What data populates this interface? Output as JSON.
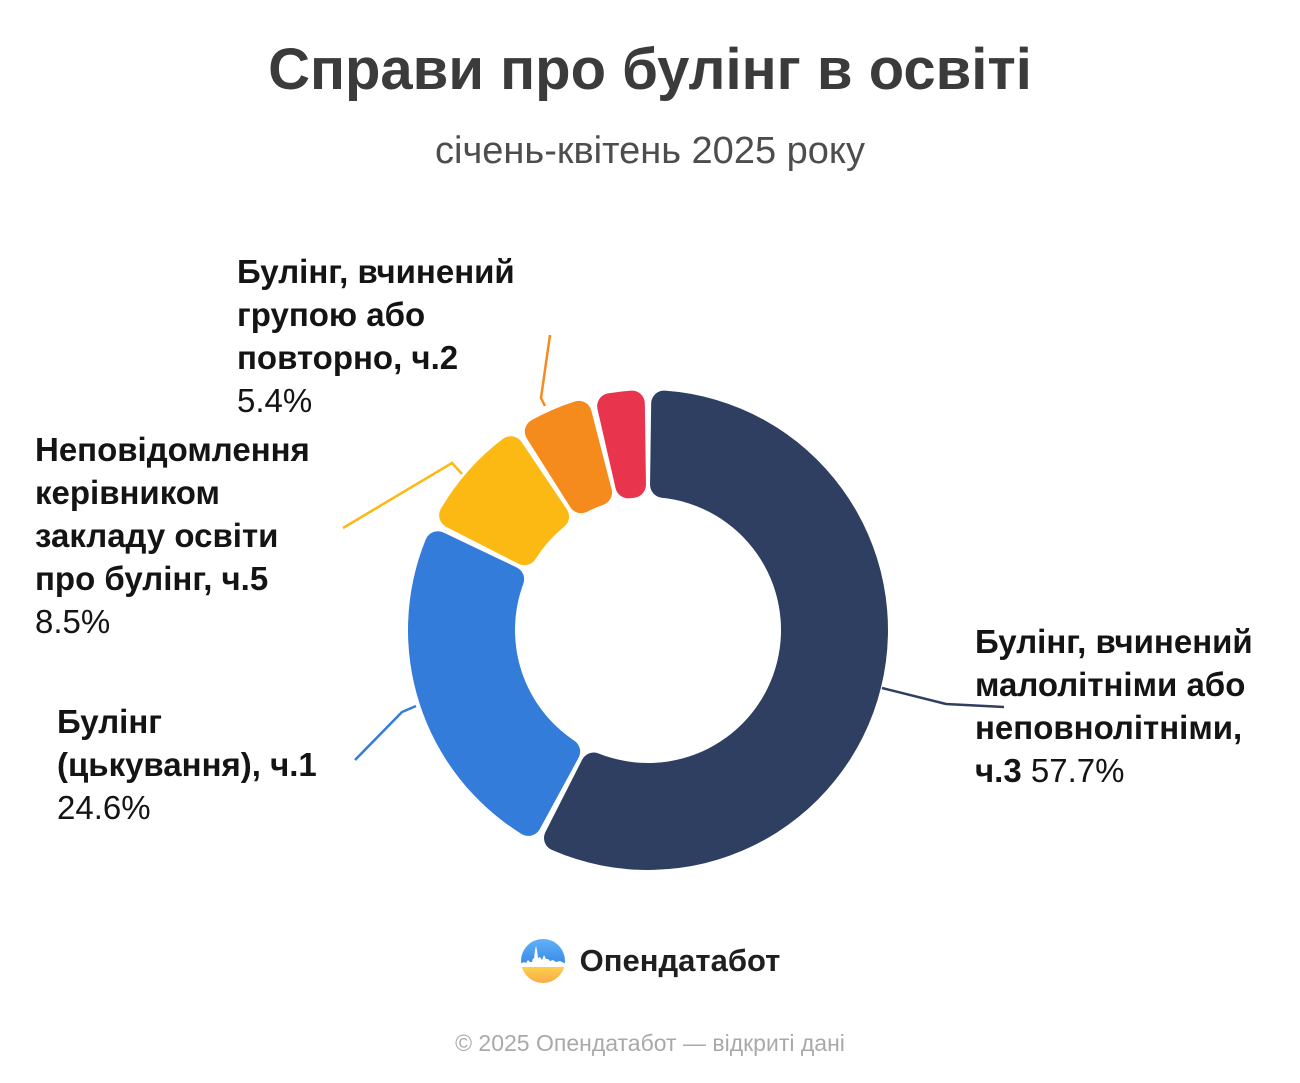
{
  "title": "Справи про булінг в освіті",
  "subtitle": "січень-квітень 2025 року",
  "chart_data": {
    "type": "pie",
    "variant": "donut",
    "title": "Справи про булінг в освіті",
    "subtitle": "січень-квітень 2025 року",
    "unit": "%",
    "rotation_deg": 0,
    "direction": "clockwise",
    "slices": [
      {
        "label": "Булінг, вчинений малолітніми або неповнолітніми, ч.3",
        "value": 57.7,
        "color": "#2e3f62"
      },
      {
        "label": "Булінг (цькування), ч.1",
        "value": 24.6,
        "color": "#347cd9"
      },
      {
        "label": "Неповідомлення керівником закладу освіти про булінг, ч.5",
        "value": 8.5,
        "color": "#fcb813"
      },
      {
        "label": "Булінг, вчинений групою або повторно, ч.2",
        "value": 5.4,
        "color": "#f68b1d"
      },
      {
        "label": "",
        "value": 3.8,
        "color": "#e8344d"
      }
    ],
    "legend_position": "callouts"
  },
  "callouts": {
    "ch2": {
      "lines": [
        "Булінг, вчинений",
        "групою або",
        "повторно, ч.2"
      ],
      "value": "5.4%"
    },
    "ch5": {
      "lines": [
        "Неповідомлення",
        "керівником",
        "закладу освіти",
        "про булінг, ч.5"
      ],
      "value": "8.5%"
    },
    "ch1": {
      "lines": [
        "Булінг",
        "(цькування), ч.1"
      ],
      "value": "24.6%"
    },
    "ch3": {
      "lines": [
        "Булінг, вчинений",
        "малолітніми або",
        "неповнолітніми,"
      ],
      "prefix": "ч.3",
      "value": "57.7%"
    }
  },
  "logo": {
    "text": "Опендатабот"
  },
  "footer": "© 2025 Опендатабот — відкриті дані"
}
